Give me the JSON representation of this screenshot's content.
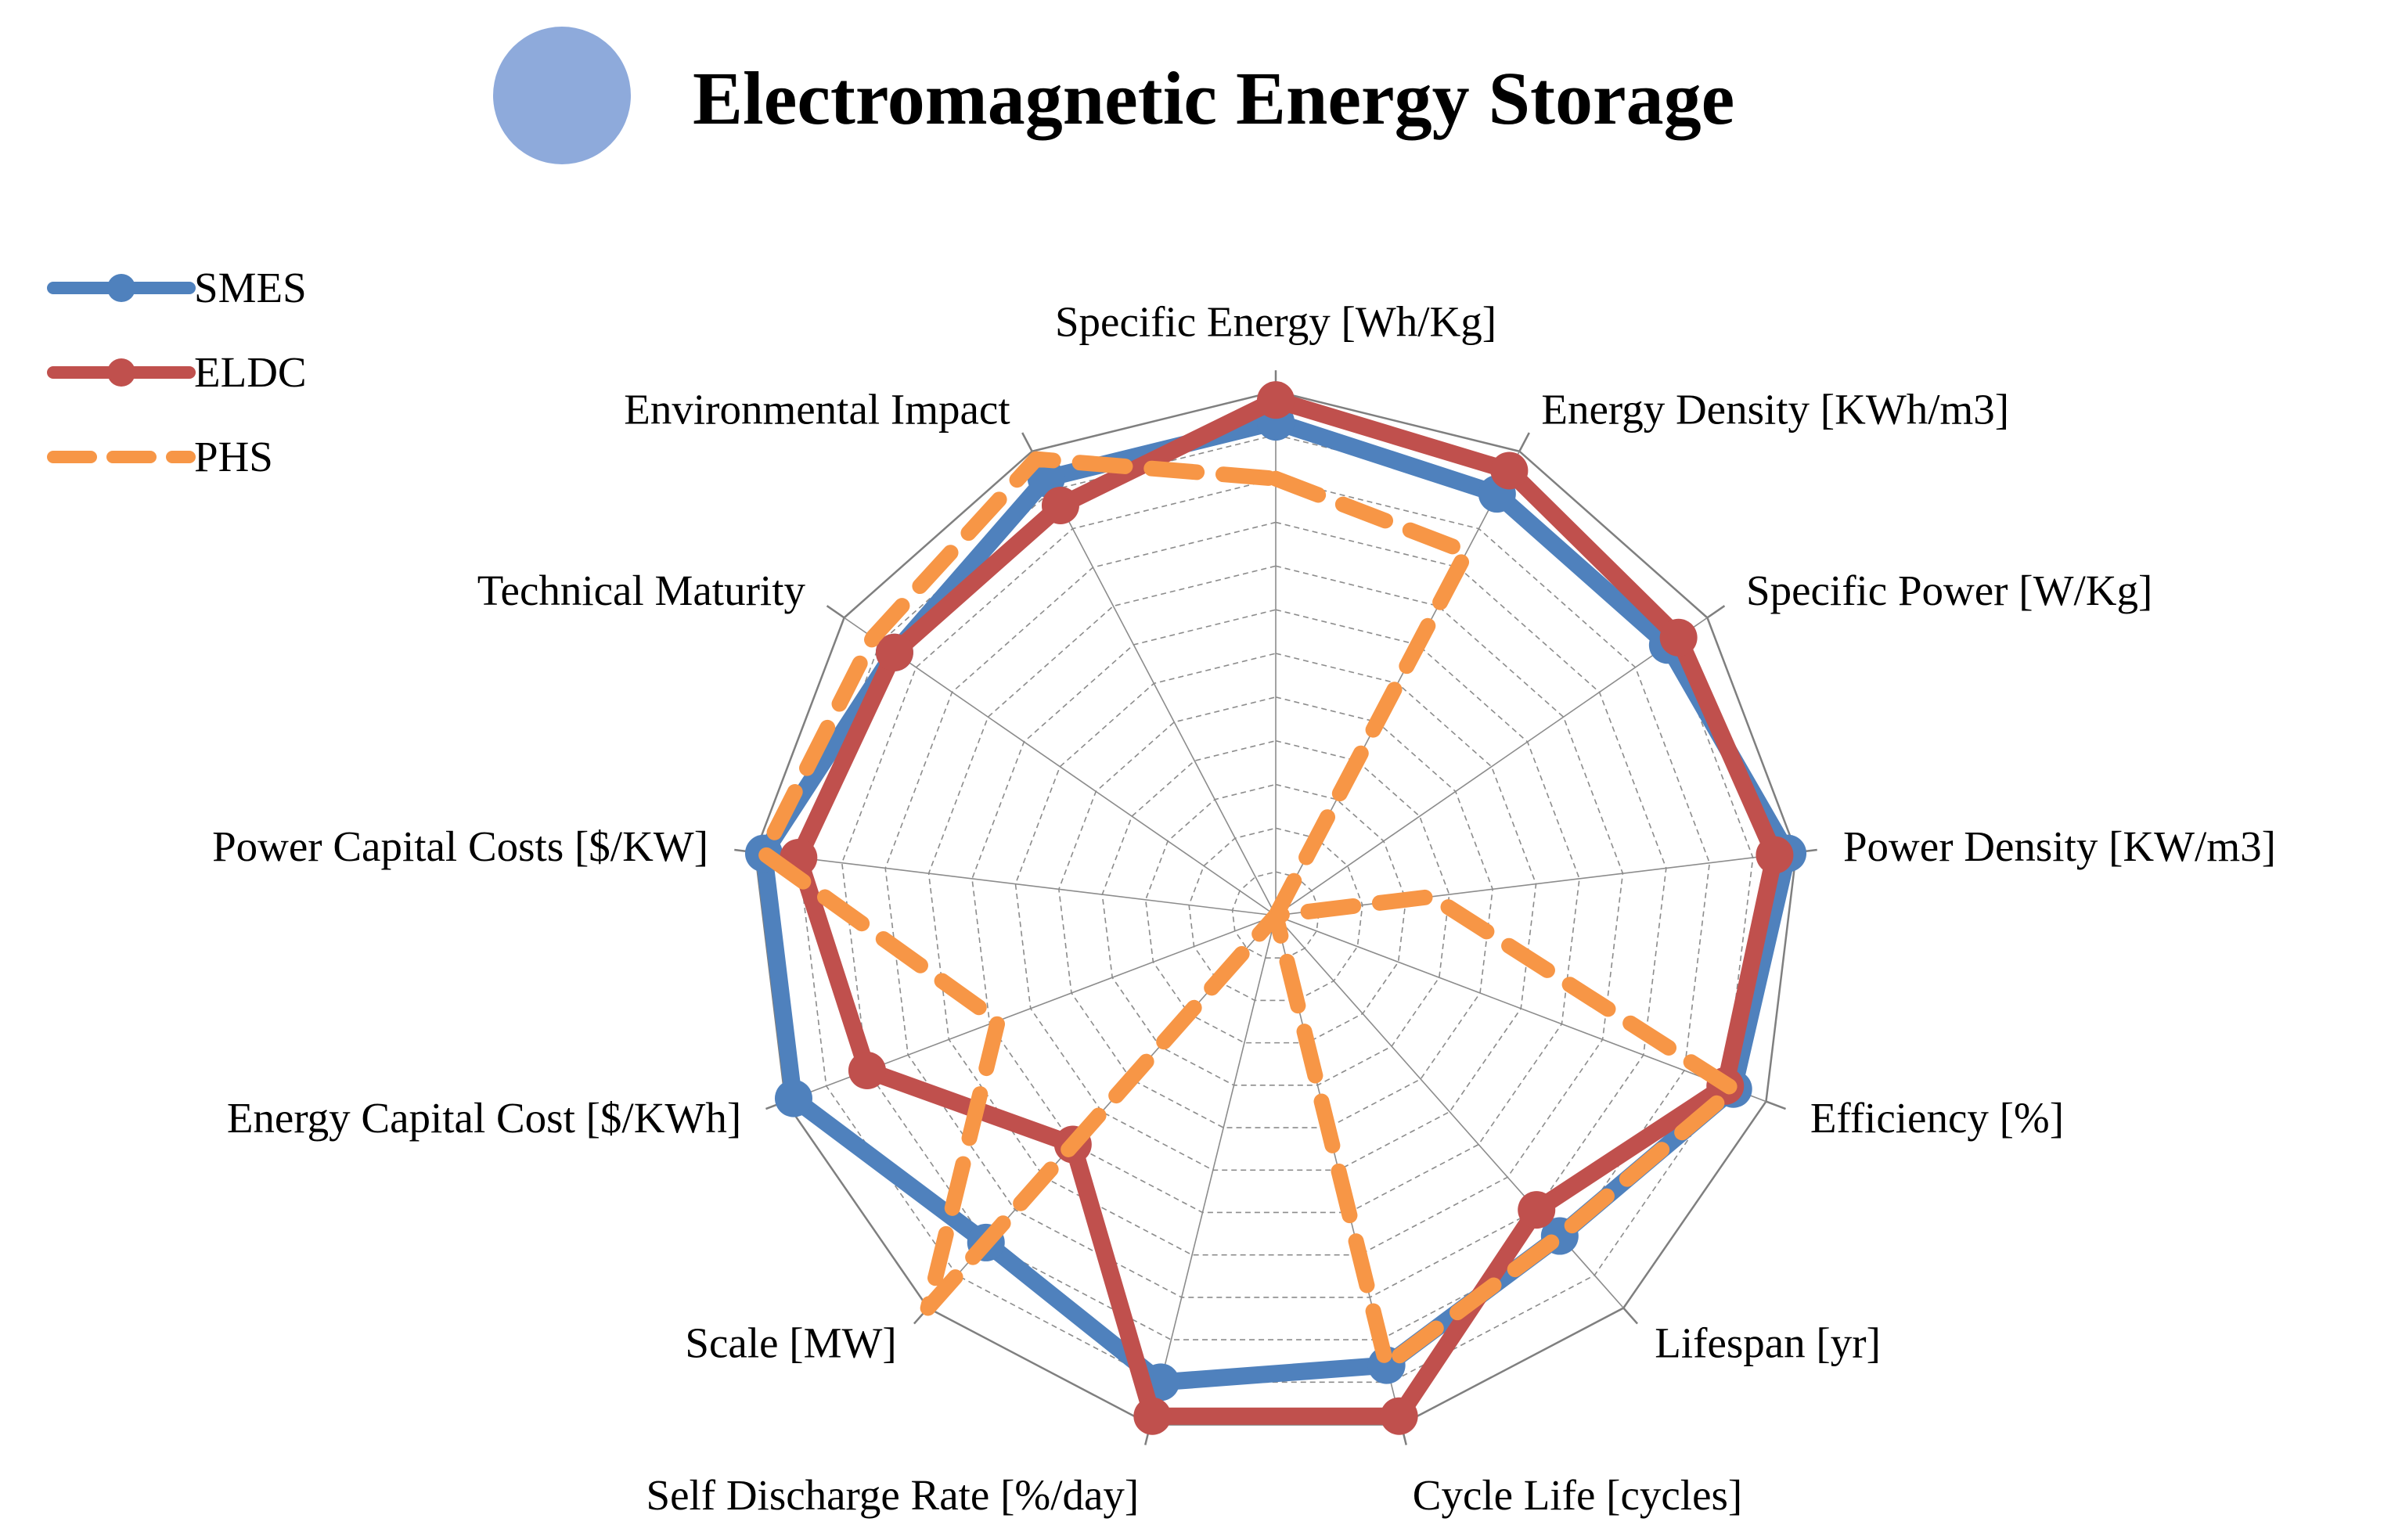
{
  "chart_data": {
    "type": "radar",
    "title": "Electromagnetic Energy Storage",
    "colors": {
      "title_circle": "#8eaadb",
      "SMES": "#4f81bd",
      "ELDC": "#c0504d",
      "PHS": "#f79646",
      "grid": "#8c8c8c"
    },
    "axes": [
      "Specific Energy [Wh/Kg]",
      "Energy Density [KWh/m3]",
      "Specific Power [W/Kg]",
      "Power Density [KW/m3]",
      "Efficiency [%]",
      "Lifespan [yr]",
      "Cycle Life [cycles]",
      "Self Discharge Rate [%/day]",
      "Scale [MW]",
      "Energy Capital Cost [$/KWh]",
      "Power Capital Costs [$/KW]",
      "Technical Maturity",
      "Environmental Impact"
    ],
    "r_range": [
      0,
      12
    ],
    "grid_levels": 12,
    "series": [
      {
        "name": "SMES",
        "style": "solid",
        "values": [
          11.3,
          10.9,
          10.9,
          11.8,
          11.2,
          9.8,
          10.6,
          11.0,
          10.0,
          11.8,
          11.8,
          10.6,
          11.3
        ]
      },
      {
        "name": "ELDC",
        "style": "solid",
        "values": [
          11.8,
          11.5,
          11.2,
          11.5,
          11.0,
          9.0,
          11.8,
          11.8,
          7.0,
          10.0,
          11.0,
          10.6,
          10.6
        ]
      },
      {
        "name": "PHS",
        "style": "dashed",
        "values": [
          10.0,
          9.4,
          0.0,
          3.6,
          11.2,
          9.8,
          10.6,
          0.0,
          12.0,
          6.8,
          11.8,
          11.2,
          11.8
        ]
      }
    ],
    "legend": {
      "position": "top-left",
      "entries": [
        "SMES",
        "ELDC",
        "PHS"
      ]
    }
  }
}
